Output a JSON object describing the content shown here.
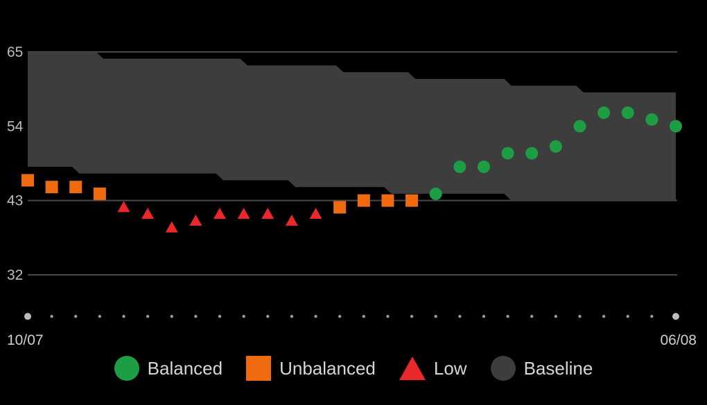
{
  "chart_data": {
    "type": "scatter",
    "title": "",
    "xlabel": "",
    "ylabel": "",
    "ylim": [
      26,
      68
    ],
    "yticks": [
      65,
      54,
      43,
      32
    ],
    "grid": true,
    "legend_position": "bottom",
    "x_start_label": "10/07",
    "x_end_label": "06/08",
    "baseline": {
      "name": "Baseline",
      "color": "#3d3d3d",
      "upper": [
        65,
        65,
        65,
        64,
        64,
        64,
        64,
        64,
        64,
        63,
        63,
        63,
        63,
        62,
        62,
        62,
        61,
        61,
        61,
        61,
        60,
        60,
        60,
        59,
        59,
        59,
        59,
        59
      ],
      "lower": [
        48,
        48,
        47,
        47,
        47,
        47,
        47,
        47,
        46,
        46,
        46,
        45,
        45,
        45,
        45,
        44,
        44,
        44,
        44,
        44,
        43,
        43,
        43,
        43,
        43,
        43,
        43,
        43
      ]
    },
    "series": [
      {
        "name": "Balanced",
        "color": "#1e9e44",
        "marker": "circle",
        "points": [
          [
            17,
            44
          ],
          [
            18,
            48
          ],
          [
            19,
            48
          ],
          [
            20,
            50
          ],
          [
            21,
            50
          ],
          [
            22,
            51
          ],
          [
            23,
            54
          ],
          [
            24,
            56
          ],
          [
            25,
            56
          ],
          [
            26,
            55
          ],
          [
            27,
            54
          ]
        ]
      },
      {
        "name": "Unbalanced",
        "color": "#f06a10",
        "marker": "square",
        "points": [
          [
            0,
            46
          ],
          [
            1,
            45
          ],
          [
            2,
            45
          ],
          [
            3,
            44
          ],
          [
            13,
            42
          ],
          [
            14,
            43
          ],
          [
            15,
            43
          ],
          [
            16,
            43
          ]
        ]
      },
      {
        "name": "Low",
        "color": "#e8282b",
        "marker": "triangle",
        "points": [
          [
            4,
            42
          ],
          [
            5,
            41
          ],
          [
            6,
            39
          ],
          [
            7,
            40
          ],
          [
            8,
            41
          ],
          [
            9,
            41
          ],
          [
            10,
            41
          ],
          [
            11,
            40
          ],
          [
            12,
            41
          ]
        ]
      }
    ]
  },
  "legend": [
    {
      "label": "Balanced",
      "color": "#1e9e44",
      "icon": "circle-icon"
    },
    {
      "label": "Unbalanced",
      "color": "#f06a10",
      "icon": "square-icon"
    },
    {
      "label": "Low",
      "color": "#e8282b",
      "icon": "triangle-icon"
    },
    {
      "label": "Baseline",
      "color": "#3d3d3d",
      "icon": "circle-icon"
    }
  ]
}
